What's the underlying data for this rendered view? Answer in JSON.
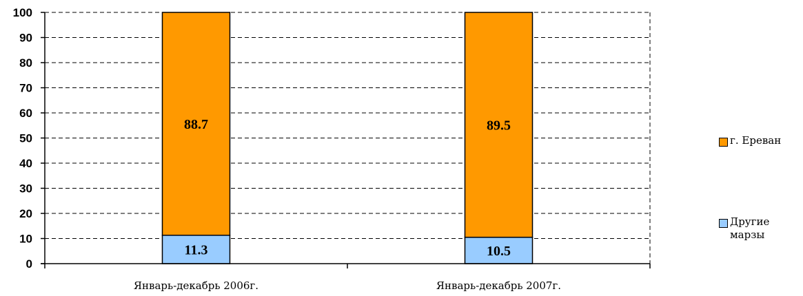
{
  "chart_data": {
    "type": "bar",
    "stacked": true,
    "categories": [
      "Январь-декабрь 2006г.",
      "Январь-декабрь 2007г."
    ],
    "series": [
      {
        "name": "Другие марзы",
        "values": [
          11.3,
          10.5
        ],
        "color": "#99ccff"
      },
      {
        "name": "г. Ереван",
        "values": [
          88.7,
          89.5
        ],
        "color": "#ff9900"
      }
    ],
    "data_labels": [
      [
        "11.3",
        "10.5"
      ],
      [
        "88.7",
        "89.5"
      ]
    ],
    "yticks": [
      "0",
      "10",
      "20",
      "30",
      "40",
      "50",
      "60",
      "70",
      "80",
      "90",
      "100"
    ],
    "ylim": [
      0,
      100
    ],
    "grid": true,
    "legend_position": "right"
  },
  "legend": {
    "items": [
      {
        "label": "г. Ереван",
        "color": "#ff9900"
      },
      {
        "label": "Другие марзы",
        "color": "#99ccff"
      }
    ]
  }
}
